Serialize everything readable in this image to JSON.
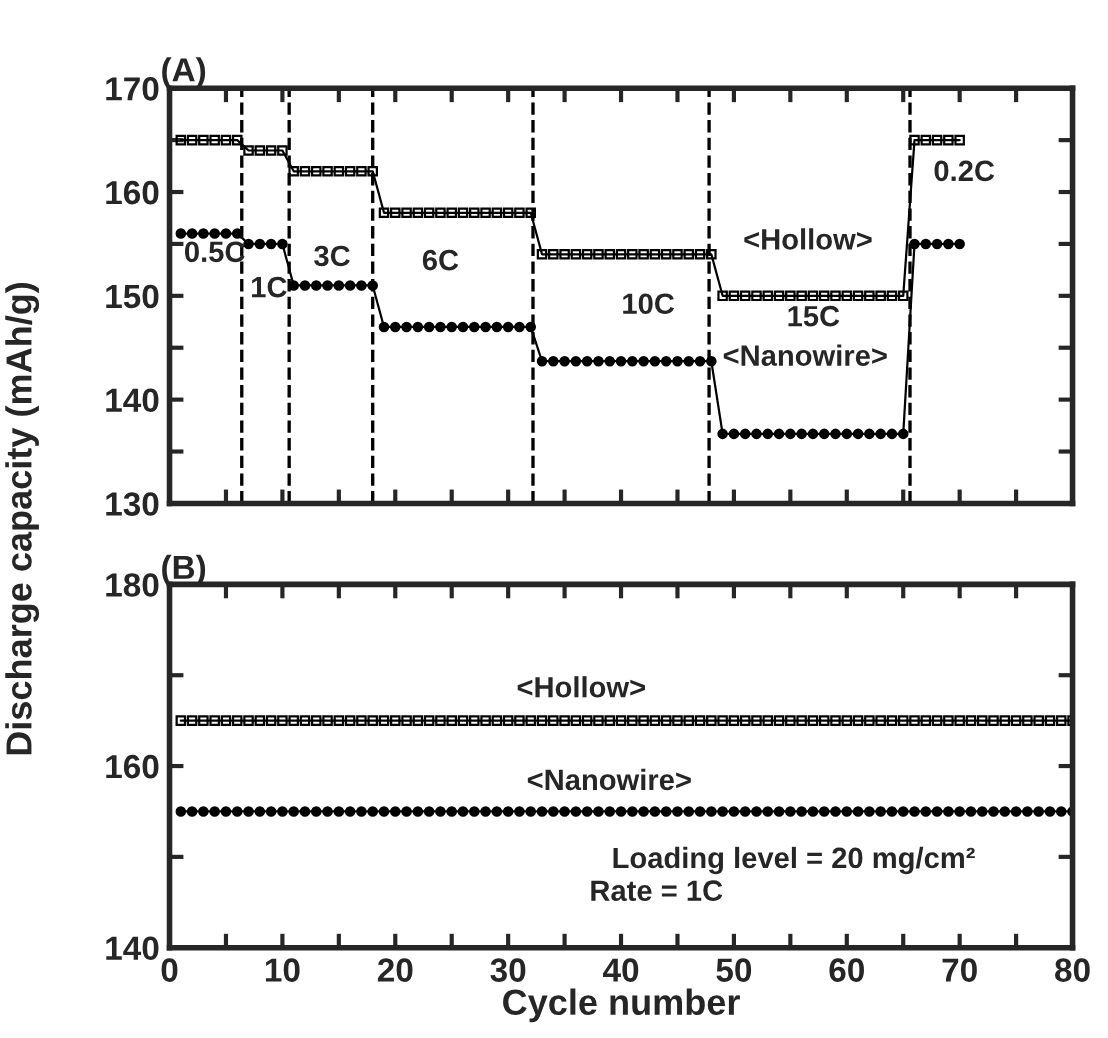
{
  "chart_data": [
    {
      "type": "line",
      "title": "(A)",
      "ylabel": "Discharge capacity (mAh/g)",
      "x": [
        1,
        2,
        3,
        4,
        5,
        6,
        7,
        8,
        9,
        10,
        11,
        12,
        13,
        14,
        15,
        16,
        17,
        18,
        19,
        20,
        21,
        22,
        23,
        24,
        25,
        26,
        27,
        28,
        29,
        30,
        31,
        32,
        33,
        34,
        35,
        36,
        37,
        38,
        39,
        40,
        41,
        42,
        43,
        44,
        45,
        46,
        47,
        48,
        49,
        50,
        51,
        52,
        53,
        54,
        55,
        56,
        57,
        58,
        59,
        60,
        61,
        62,
        63,
        64,
        65,
        66,
        67,
        68,
        69,
        70
      ],
      "series": [
        {
          "color": "#000000",
          "marker": "square",
          "values": [
            165,
            165,
            165,
            165,
            165,
            165,
            164,
            164,
            164,
            164,
            162,
            162,
            162,
            162,
            162,
            162,
            162,
            162,
            158,
            158,
            158,
            158,
            158,
            158,
            158,
            158,
            158,
            158,
            158,
            158,
            158,
            158,
            154,
            154,
            154,
            154,
            154,
            154,
            154,
            154,
            154,
            154,
            154,
            154,
            154,
            154,
            154,
            154,
            150,
            150,
            150,
            150,
            150,
            150,
            150,
            150,
            150,
            150,
            150,
            150,
            150,
            150,
            150,
            150,
            150,
            165,
            165,
            165,
            165,
            165
          ]
        },
        {
          "color": "#000000",
          "marker": "circle",
          "values": [
            156,
            156,
            156,
            156,
            156,
            156,
            155,
            155,
            155,
            155,
            151,
            151,
            151,
            151,
            151,
            151,
            151,
            151,
            147,
            147,
            147,
            147,
            147,
            147,
            147,
            147,
            147,
            147,
            147,
            147,
            147,
            147,
            143.7,
            143.7,
            143.7,
            143.7,
            143.7,
            143.7,
            143.7,
            143.7,
            143.7,
            143.7,
            143.7,
            143.7,
            143.7,
            143.7,
            143.7,
            143.7,
            136.7,
            136.7,
            136.7,
            136.7,
            136.7,
            136.7,
            136.7,
            136.7,
            136.7,
            136.7,
            136.7,
            136.7,
            136.7,
            136.7,
            136.7,
            136.7,
            136.7,
            155,
            155,
            155,
            155,
            155
          ]
        }
      ],
      "xlim": [
        0,
        80
      ],
      "xticks": [
        0,
        {
          "value": 5,
          "label": null
        },
        10,
        {
          "value": 15,
          "label": null
        },
        20,
        {
          "value": 25,
          "label": null
        },
        30,
        {
          "value": 35,
          "label": null
        },
        40,
        {
          "value": 45,
          "label": null
        },
        50,
        {
          "value": 55,
          "label": null
        },
        60,
        {
          "value": 65,
          "label": null
        },
        70,
        {
          "value": 75,
          "label": null
        },
        80
      ],
      "ylim": [
        130,
        170
      ],
      "yticks": [
        130,
        {
          "value": 135,
          "label": null
        },
        140,
        {
          "value": 145,
          "label": null
        },
        150,
        {
          "value": 155,
          "label": null
        },
        160,
        {
          "value": 165,
          "label": null
        },
        170
      ],
      "tick_labels": "y",
      "line_style": "solid",
      "ref_lines": [
        {
          "axis": "x",
          "value": 6.4,
          "line_style": "dashed"
        },
        {
          "axis": "x",
          "value": 10.6,
          "line_style": "dashed"
        },
        {
          "axis": "x",
          "value": 18,
          "line_style": "dashed"
        },
        {
          "axis": "x",
          "value": 32.2,
          "line_style": "dashed"
        },
        {
          "axis": "x",
          "value": 47.8,
          "line_style": "dashed"
        },
        {
          "axis": "x",
          "value": 65.6,
          "line_style": "dashed"
        }
      ],
      "annotations": [
        "0.5C",
        "1C",
        "3C",
        "6C",
        "10C",
        "15C",
        "0.2C",
        "<Hollow>",
        "<Nanowire>"
      ]
    },
    {
      "type": "line",
      "title": "(B)",
      "xlabel": "Cycle number",
      "x": [
        1,
        2,
        3,
        4,
        5,
        6,
        7,
        8,
        9,
        10,
        11,
        12,
        13,
        14,
        15,
        16,
        17,
        18,
        19,
        20,
        21,
        22,
        23,
        24,
        25,
        26,
        27,
        28,
        29,
        30,
        31,
        32,
        33,
        34,
        35,
        36,
        37,
        38,
        39,
        40,
        41,
        42,
        43,
        44,
        45,
        46,
        47,
        48,
        49,
        50,
        51,
        52,
        53,
        54,
        55,
        56,
        57,
        58,
        59,
        60,
        61,
        62,
        63,
        64,
        65,
        66,
        67,
        68,
        69,
        70,
        71,
        72,
        73,
        74,
        75,
        76,
        77,
        78,
        79,
        80
      ],
      "series": [
        {
          "color": "#000000",
          "marker": "square",
          "values": [
            165,
            165,
            165,
            165,
            165,
            165,
            165,
            165,
            165,
            165,
            165,
            165,
            165,
            165,
            165,
            165,
            165,
            165,
            165,
            165,
            165,
            165,
            165,
            165,
            165,
            165,
            165,
            165,
            165,
            165,
            165,
            165,
            165,
            165,
            165,
            165,
            165,
            165,
            165,
            165,
            165,
            165,
            165,
            165,
            165,
            165,
            165,
            165,
            165,
            165,
            165,
            165,
            165,
            165,
            165,
            165,
            165,
            165,
            165,
            165,
            165,
            165,
            165,
            165,
            165,
            165,
            165,
            165,
            165,
            165,
            165,
            165,
            165,
            165,
            165,
            165,
            165,
            165,
            165,
            165
          ]
        },
        {
          "color": "#000000",
          "marker": "circle",
          "values": [
            155,
            155,
            155,
            155,
            155,
            155,
            155,
            155,
            155,
            155,
            155,
            155,
            155,
            155,
            155,
            155,
            155,
            155,
            155,
            155,
            155,
            155,
            155,
            155,
            155,
            155,
            155,
            155,
            155,
            155,
            155,
            155,
            155,
            155,
            155,
            155,
            155,
            155,
            155,
            155,
            155,
            155,
            155,
            155,
            155,
            155,
            155,
            155,
            155,
            155,
            155,
            155,
            155,
            155,
            155,
            155,
            155,
            155,
            155,
            155,
            155,
            155,
            155,
            155,
            155,
            155,
            155,
            155,
            155,
            155,
            155,
            155,
            155,
            155,
            155,
            155,
            155,
            155,
            155,
            155
          ]
        }
      ],
      "xlim": [
        0,
        80
      ],
      "xticks": [
        0,
        {
          "value": 5,
          "label": null
        },
        10,
        {
          "value": 15,
          "label": null
        },
        20,
        {
          "value": 25,
          "label": null
        },
        30,
        {
          "value": 35,
          "label": null
        },
        40,
        {
          "value": 45,
          "label": null
        },
        50,
        {
          "value": 55,
          "label": null
        },
        60,
        {
          "value": 65,
          "label": null
        },
        70,
        {
          "value": 75,
          "label": null
        },
        80
      ],
      "ylim": [
        140,
        180
      ],
      "yticks": [
        140,
        {
          "value": 150,
          "label": null
        },
        160,
        {
          "value": 170,
          "label": null
        },
        180
      ],
      "line_style": "solid",
      "annotations": [
        "<Hollow>",
        "<Nanowire>",
        "Loading level = 20 mg/cm²",
        "Rate = 1C"
      ]
    }
  ]
}
